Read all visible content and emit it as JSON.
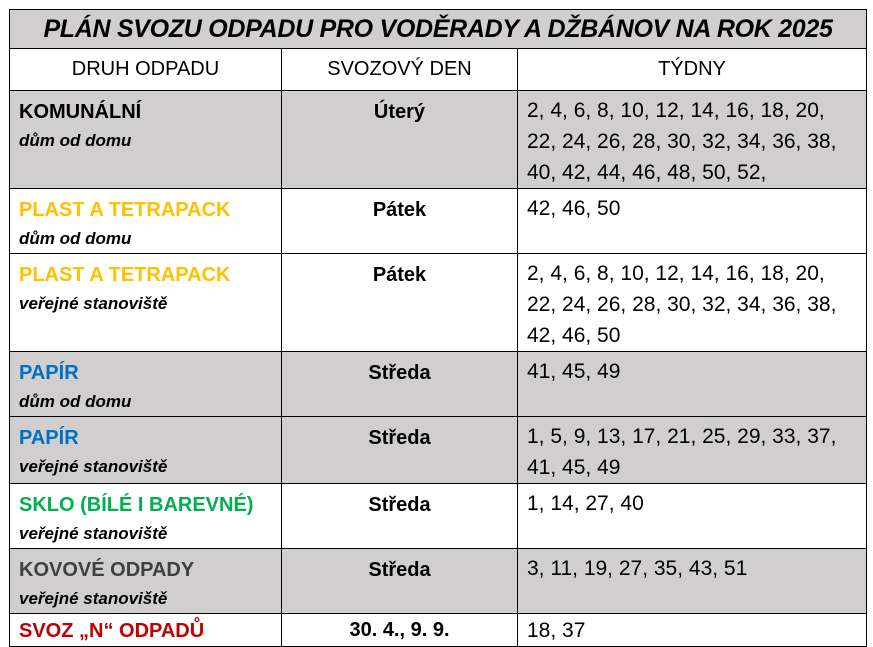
{
  "title": "PLÁN SVOZU ODPADU PRO VODĚRADY A DŽBÁNOV NA ROK 2025",
  "headers": [
    "DRUH ODPADU",
    "SVOZOVÝ DEN",
    "TÝDNY"
  ],
  "rows": [
    {
      "name": "KOMUNÁLNÍ",
      "sub": "dům od domu",
      "day": "Úterý",
      "weeks": "2, 4, 6, 8, 10, 12, 14, 16, 18, 20, 22, 24, 26, 28, 30, 32, 34, 36, 38, 40, 42, 44, 46, 48, 50, 52,",
      "color": "#000000",
      "shaded": true
    },
    {
      "name": "PLAST A TETRAPACK",
      "sub": "dům od domu",
      "day": "Pátek",
      "weeks": "42, 46, 50",
      "color": "#FFC000",
      "shaded": false
    },
    {
      "name": "PLAST A TETRAPACK",
      "sub": "veřejné stanoviště",
      "day": "Pátek",
      "weeks": "2, 4, 6, 8, 10, 12, 14, 16, 18, 20, 22, 24, 26, 28, 30, 32, 34, 36, 38, 42, 46, 50",
      "color": "#FFC000",
      "shaded": false
    },
    {
      "name": "PAPÍR",
      "sub": "dům od domu",
      "day": "Středa",
      "weeks": "41, 45, 49",
      "color": "#0070C0",
      "shaded": true
    },
    {
      "name": "PAPÍR",
      "sub": "veřejné stanoviště",
      "day": "Středa",
      "weeks": "1, 5, 9, 13, 17, 21, 25, 29, 33, 37, 41, 45, 49",
      "color": "#0070C0",
      "shaded": true
    },
    {
      "name": "SKLO (BÍLÉ I BAREVNÉ)",
      "sub": "veřejné stanoviště",
      "day": "Středa",
      "weeks": "1, 14, 27, 40",
      "color": "#00B050",
      "shaded": false
    },
    {
      "name": "KOVOVÉ ODPADY",
      "sub": "veřejné stanoviště",
      "day": "Středa",
      "weeks": "3, 11, 19, 27, 35, 43, 51",
      "color": "#404040",
      "shaded": true
    },
    {
      "name": "SVOZ „N“ ODPADŮ",
      "day": "30. 4., 9. 9.",
      "weeks": "18, 37",
      "color": "#C00000",
      "shaded": false
    }
  ]
}
